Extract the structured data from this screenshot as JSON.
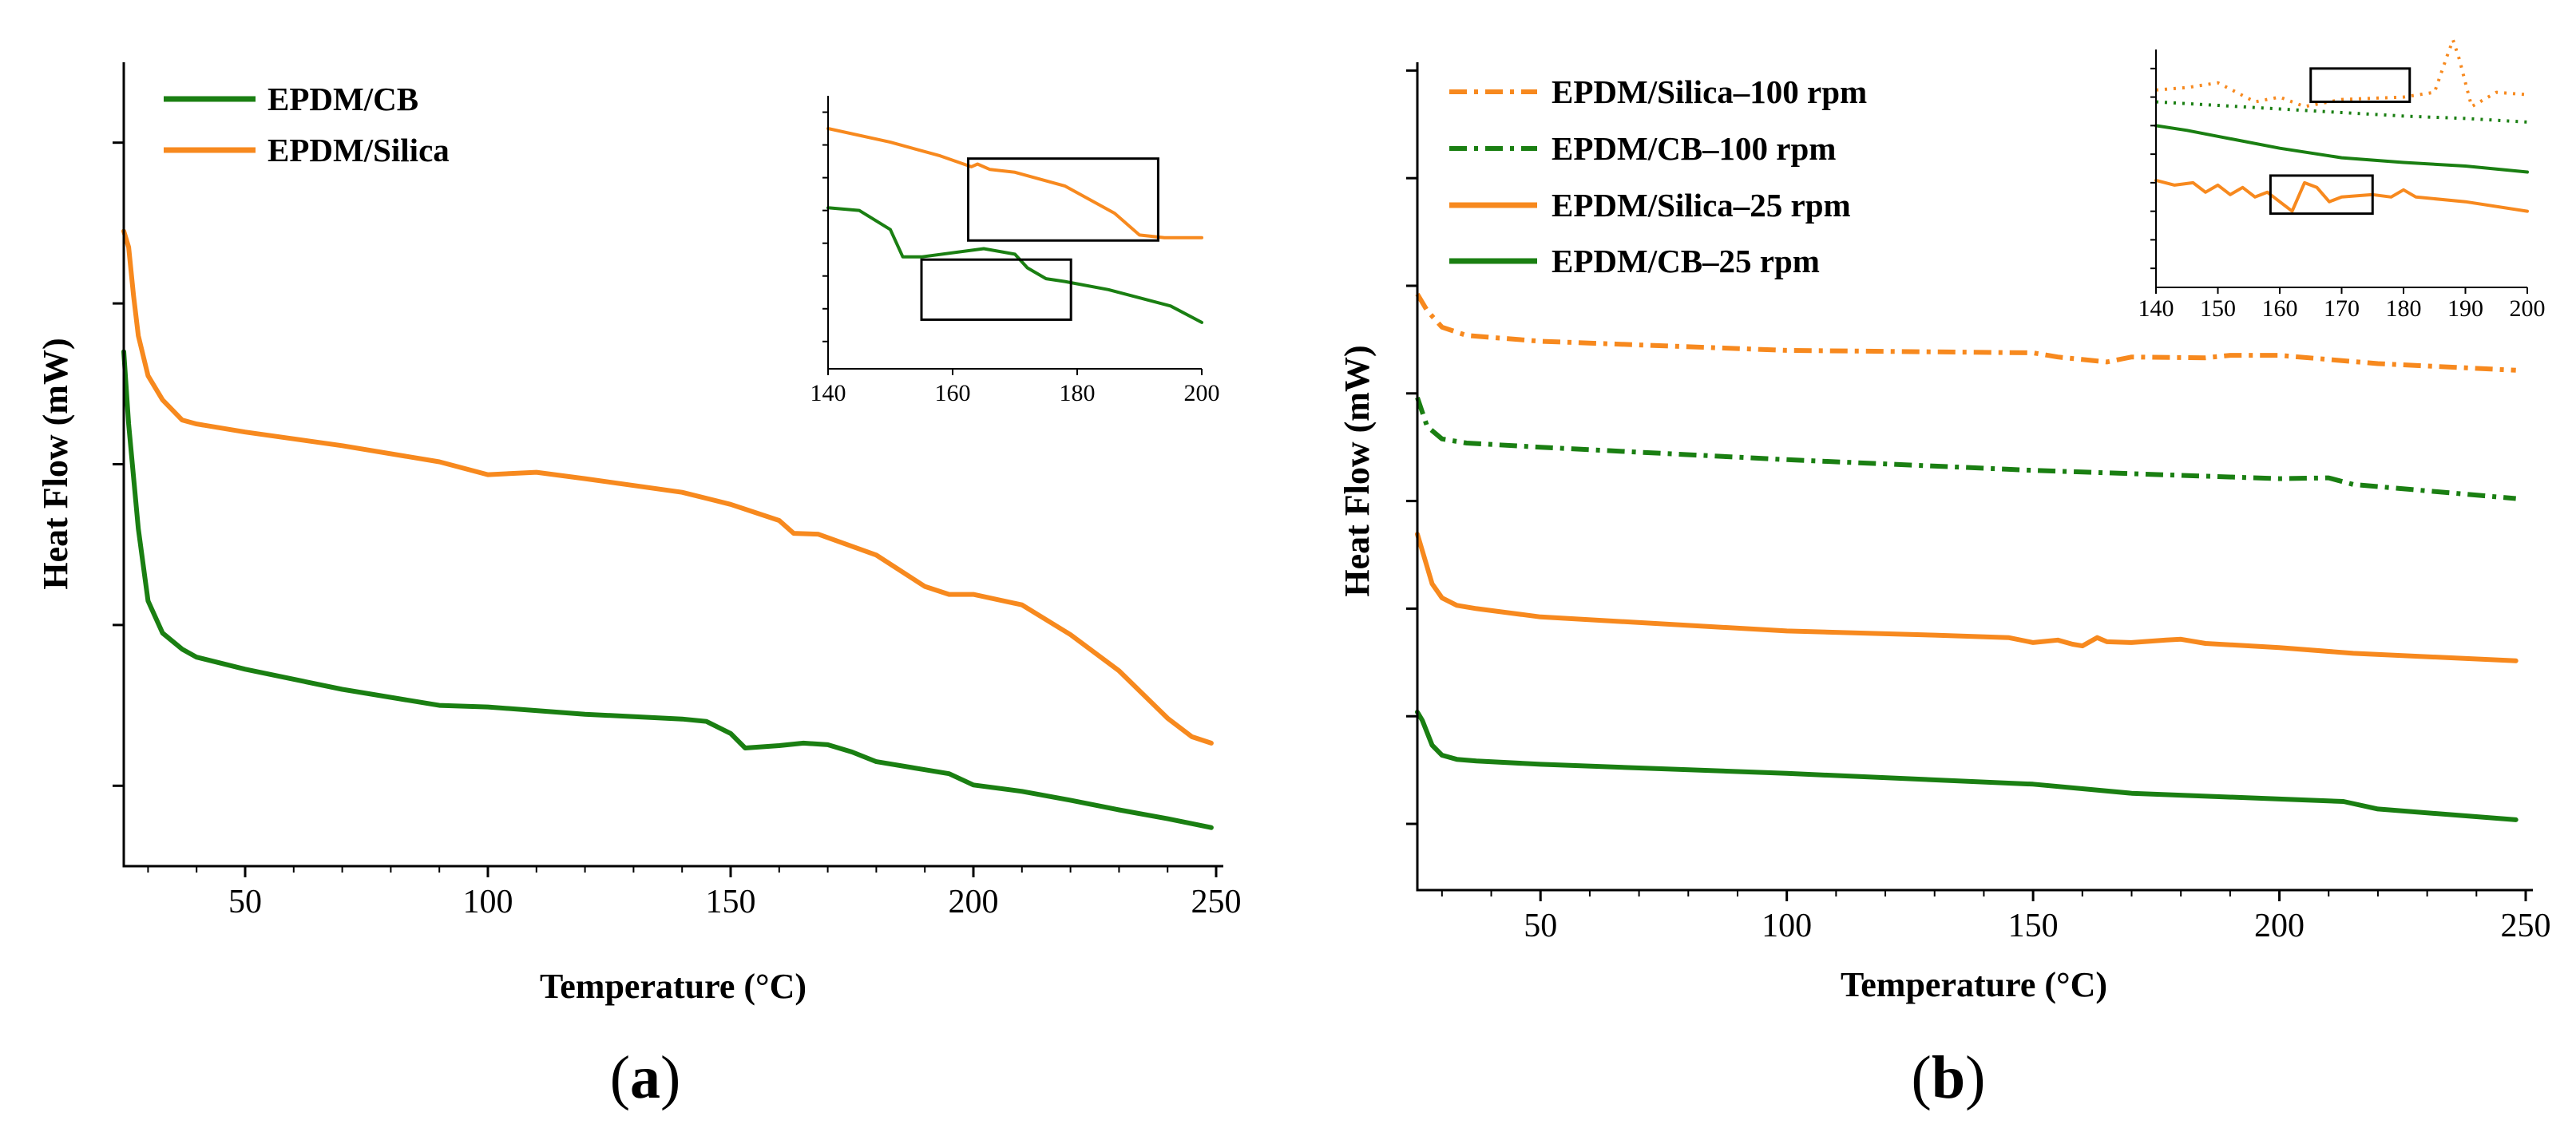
{
  "colors": {
    "cb": "#1a7f12",
    "silica": "#f7891e",
    "axis": "#000000"
  },
  "panels": {
    "a": {
      "label_open": "(",
      "label_letter": "a",
      "label_close": ")",
      "xlabel": "Temperature (°C)",
      "ylabel": "Heat Flow (mW)"
    },
    "b": {
      "label_open": "(",
      "label_letter": "b",
      "label_close": ")",
      "xlabel": "Temperature (°C)",
      "ylabel": "Heat Flow (mW)"
    }
  },
  "chart_data": [
    {
      "id": "a",
      "type": "line",
      "xlabel": "Temperature (°C)",
      "ylabel": "Heat Flow (mW)",
      "xlim": [
        25,
        250
      ],
      "ylim": [
        0,
        100
      ],
      "xticks": [
        50,
        100,
        150,
        200,
        250
      ],
      "xtick_labels": [
        "50",
        "100",
        "150",
        "200",
        "250"
      ],
      "yticks": [
        10,
        30,
        50,
        70,
        90
      ],
      "ytick_labels": [
        "",
        "",
        "",
        "",
        ""
      ],
      "legend_position": "top-left",
      "series": [
        {
          "name": "EPDM/CB",
          "color": "#1a7f12",
          "style": "solid",
          "x": [
            25,
            26,
            28,
            30,
            33,
            37,
            40,
            50,
            70,
            90,
            100,
            120,
            140,
            145,
            150,
            153,
            160,
            165,
            170,
            175,
            180,
            190,
            195,
            200,
            210,
            220,
            230,
            240,
            249
          ],
          "y": [
            64,
            55,
            42,
            33,
            29,
            27,
            26,
            24.5,
            22,
            20,
            19.8,
            18.9,
            18.3,
            18.0,
            16.5,
            14.7,
            15.0,
            15.3,
            15.1,
            14.2,
            13.0,
            12.0,
            11.5,
            10.1,
            9.3,
            8.2,
            7.0,
            5.9,
            4.8
          ]
        },
        {
          "name": "EPDM/Silica",
          "color": "#f7891e",
          "style": "solid",
          "x": [
            25,
            26,
            27,
            28,
            30,
            33,
            37,
            40,
            50,
            70,
            90,
            100,
            110,
            120,
            140,
            150,
            160,
            163,
            168,
            180,
            190,
            195,
            200,
            210,
            220,
            230,
            240,
            245,
            249
          ],
          "y": [
            79,
            77,
            71,
            66,
            61,
            58,
            55.5,
            55,
            54,
            52.3,
            50.3,
            48.7,
            49.0,
            48.2,
            46.5,
            45.0,
            43.0,
            41.4,
            41.3,
            38.7,
            34.8,
            33.8,
            33.8,
            32.5,
            28.8,
            24.3,
            18.4,
            16.1,
            15.3
          ]
        }
      ],
      "inset": {
        "xlim": [
          140,
          200
        ],
        "xticks": [
          140,
          160,
          180,
          200
        ],
        "xtick_labels": [
          "140",
          "160",
          "180",
          "200"
        ],
        "ylim": [
          0,
          100
        ],
        "series": [
          {
            "name": "EPDM/Silica",
            "color": "#f7891e",
            "x": [
              140,
              150,
              158,
              163,
              164,
              166,
              170,
              178,
              186,
              190,
              194,
              196,
              200
            ],
            "y": [
              88,
              83,
              78,
              74,
              75,
              73,
              72,
              67,
              57,
              49,
              48,
              48,
              48
            ]
          },
          {
            "name": "EPDM/CB",
            "color": "#1a7f12",
            "x": [
              140,
              145,
              150,
              152,
              155,
              165,
              170,
              172,
              175,
              178,
              185,
              195,
              200
            ],
            "y": [
              59,
              58,
              51,
              41,
              41,
              44,
              42,
              37,
              33,
              32,
              29,
              23,
              17
            ]
          }
        ],
        "highlight_boxes": [
          {
            "x": [
              162.5,
              193
            ],
            "y": [
              47,
              77
            ]
          },
          {
            "x": [
              155,
              179
            ],
            "y": [
              18,
              40
            ]
          }
        ]
      }
    },
    {
      "id": "b",
      "type": "line",
      "xlabel": "Temperature (°C)",
      "ylabel": "Heat Flow (mW)",
      "xlim": [
        25,
        250
      ],
      "ylim": [
        0,
        100
      ],
      "xticks": [
        50,
        100,
        150,
        200,
        250
      ],
      "xtick_labels": [
        "50",
        "100",
        "150",
        "200",
        "250"
      ],
      "yticks": [
        8,
        21,
        34,
        47,
        60,
        73,
        86,
        99
      ],
      "ytick_labels": [
        "",
        "",
        "",
        "",
        "",
        "",
        "",
        ""
      ],
      "legend_position": "top-left",
      "series": [
        {
          "name": "EPDM/Silica–100 rpm",
          "color": "#f7891e",
          "style": "dashdot",
          "x": [
            25,
            27,
            30,
            35,
            50,
            100,
            150,
            155,
            165,
            170,
            185,
            190,
            200,
            220,
            248
          ],
          "y": [
            72,
            70,
            68,
            67,
            66.3,
            65.2,
            64.9,
            64.4,
            63.8,
            64.4,
            64.3,
            64.6,
            64.6,
            63.6,
            62.8
          ]
        },
        {
          "name": "EPDM/CB–100 rpm",
          "color": "#1a7f12",
          "style": "dashdot",
          "x": [
            25,
            27,
            30,
            35,
            50,
            100,
            150,
            200,
            210,
            215,
            248
          ],
          "y": [
            59.5,
            56,
            54.5,
            54,
            53.5,
            52,
            50.7,
            49.7,
            49.8,
            49.0,
            47.3
          ]
        },
        {
          "name": "EPDM/Silica–25 rpm",
          "color": "#f7891e",
          "style": "solid",
          "x": [
            25,
            26,
            28,
            30,
            33,
            37,
            50,
            100,
            130,
            145,
            150,
            155,
            158,
            160,
            163,
            165,
            170,
            177,
            180,
            185,
            200,
            215,
            248
          ],
          "y": [
            43,
            41,
            37,
            35.3,
            34.4,
            34.0,
            33.0,
            31.3,
            30.8,
            30.5,
            29.9,
            30.2,
            29.7,
            29.5,
            30.5,
            30.0,
            29.9,
            30.2,
            30.3,
            29.8,
            29.3,
            28.6,
            27.7
          ]
        },
        {
          "name": "EPDM/CB–25 rpm",
          "color": "#1a7f12",
          "style": "solid",
          "x": [
            25,
            26,
            28,
            30,
            33,
            37,
            50,
            100,
            150,
            170,
            200,
            213,
            220,
            248
          ],
          "y": [
            21.5,
            20.5,
            17.5,
            16.3,
            15.8,
            15.6,
            15.2,
            14.1,
            12.8,
            11.7,
            11.0,
            10.7,
            9.8,
            8.5
          ]
        }
      ],
      "inset": {
        "xlim": [
          140,
          200
        ],
        "xticks": [
          140,
          150,
          160,
          170,
          180,
          190,
          200
        ],
        "xtick_labels": [
          "140",
          "150",
          "160",
          "170",
          "180",
          "190",
          "200"
        ],
        "ylim": [
          0,
          100
        ],
        "series": [
          {
            "name": "EPDM/Silica–100 rpm",
            "color": "#f7891e",
            "style": "dotted",
            "x": [
              140,
              145,
              150,
              153,
              156,
              160,
              164,
              170,
              180,
              185,
              187,
              188,
              189,
              191,
              195,
              200
            ],
            "y": [
              83,
              84,
              86,
              82,
              78,
              80,
              76,
              79,
              80,
              82,
              97,
              104,
              96,
              76,
              82,
              81
            ]
          },
          {
            "name": "EPDM/CB–100 rpm",
            "color": "#1a7f12",
            "style": "dotted",
            "x": [
              140,
              150,
              160,
              170,
              180,
              190,
              200
            ],
            "y": [
              78,
              76.5,
              75,
              73.5,
              72,
              71,
              69.5
            ]
          },
          {
            "name": "EPDM/CB–25 rpm",
            "color": "#1a7f12",
            "style": "solid",
            "x": [
              140,
              145,
              150,
              160,
              170,
              180,
              190,
              200
            ],
            "y": [
              68,
              66,
              63.5,
              58.5,
              54.5,
              52.5,
              51,
              48.5
            ]
          },
          {
            "name": "EPDM/Silica–25 rpm",
            "color": "#f7891e",
            "style": "solid",
            "x": [
              140,
              143,
              146,
              148,
              150,
              152,
              154,
              156,
              158,
              160,
              162,
              164,
              166,
              168,
              170,
              175,
              178,
              180,
              182,
              190,
              200
            ],
            "y": [
              45,
              43,
              44,
              40,
              43,
              39,
              42,
              38,
              40,
              36,
              32,
              44,
              42,
              36,
              38,
              39,
              38,
              41,
              38,
              36,
              32
            ]
          }
        ],
        "highlight_boxes": [
          {
            "x": [
              165,
              181
            ],
            "y": [
              78,
              92
            ]
          },
          {
            "x": [
              158.5,
              175
            ],
            "y": [
              31,
              47
            ]
          }
        ]
      }
    }
  ]
}
